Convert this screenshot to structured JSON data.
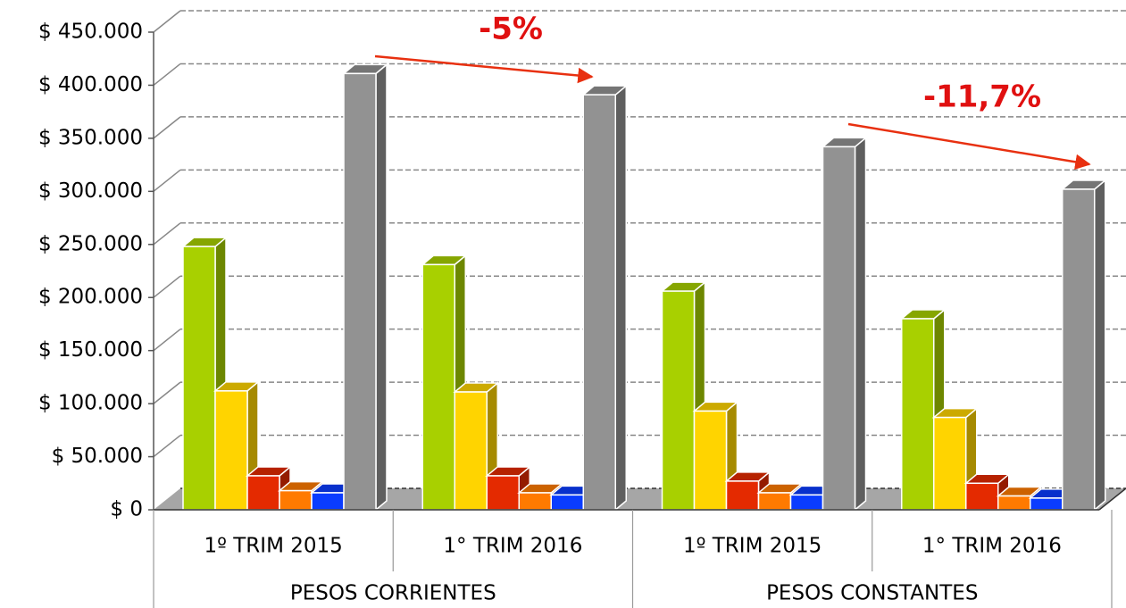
{
  "chart_data": {
    "type": "bar3d",
    "categories": [
      "1º TRIM 2015",
      "1° TRIM 2016",
      "1º TRIM 2015",
      "1° TRIM 2016"
    ],
    "category_groups": [
      "PESOS CORRIENTES",
      "PESOS CONSTANTES"
    ],
    "series": [
      {
        "color": "#a8d000",
        "values": [
          248000,
          231000,
          206000,
          180000
        ]
      },
      {
        "color": "#ffd400",
        "values": [
          112000,
          111000,
          93000,
          87000
        ]
      },
      {
        "color": "#e42a00",
        "values": [
          32000,
          32000,
          27000,
          25000
        ]
      },
      {
        "color": "#ff7a00",
        "values": [
          18000,
          16000,
          16000,
          13000
        ]
      },
      {
        "color": "#0a3cff",
        "values": [
          16000,
          14000,
          14000,
          11000
        ]
      },
      {
        "color": "#929292",
        "values": [
          411000,
          391000,
          342000,
          302000
        ]
      }
    ],
    "ylim": [
      0,
      450000
    ],
    "yticks": [
      {
        "value": 0,
        "label": "$ 0"
      },
      {
        "value": 50000,
        "label": "$ 50.000"
      },
      {
        "value": 100000,
        "label": "$ 100.000"
      },
      {
        "value": 150000,
        "label": "$ 150.000"
      },
      {
        "value": 200000,
        "label": "$ 200.000"
      },
      {
        "value": 250000,
        "label": "$ 250.000"
      },
      {
        "value": 300000,
        "label": "$ 300.000"
      },
      {
        "value": 350000,
        "label": "$ 350.000"
      },
      {
        "value": 400000,
        "label": "$ 400.000"
      },
      {
        "value": 450000,
        "label": "$ 450.000"
      }
    ],
    "grid": true,
    "annotations": [
      "-5%",
      "-11,7%"
    ]
  }
}
